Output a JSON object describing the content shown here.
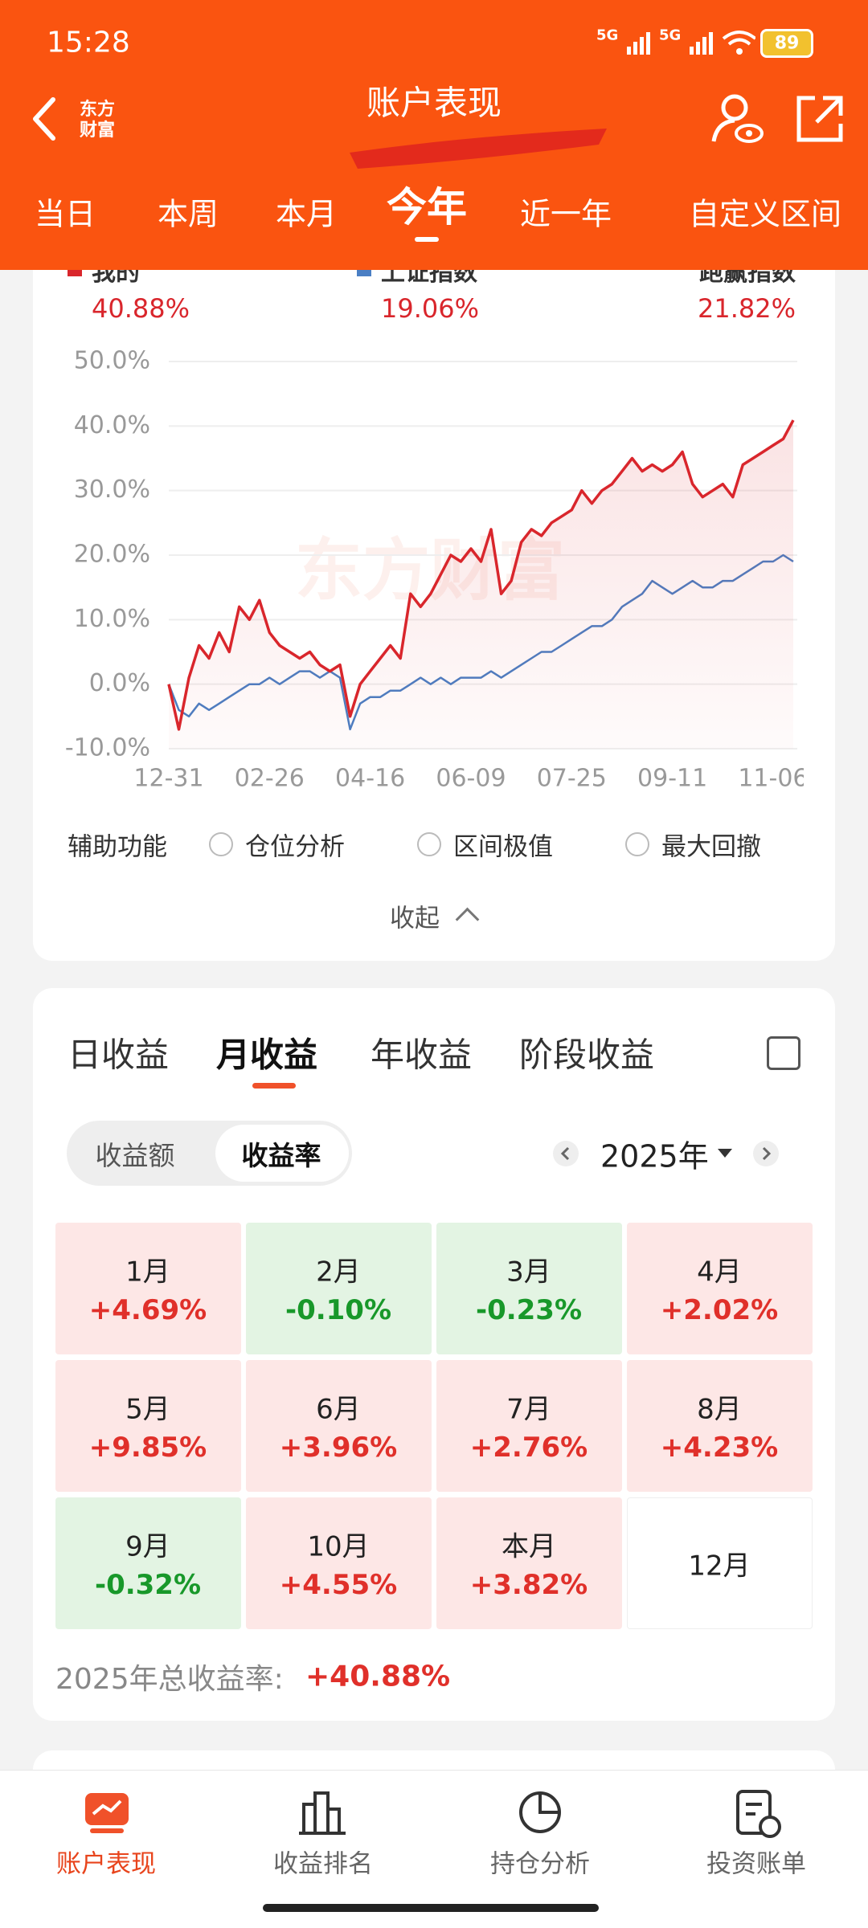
{
  "status_bar": {
    "time": "15:28",
    "network": [
      "5G",
      "5G"
    ],
    "battery": "89"
  },
  "header": {
    "logo": [
      "东方",
      "财富"
    ],
    "title": "账户表现"
  },
  "period_tabs": {
    "items": [
      "当日",
      "本周",
      "本月",
      "今年",
      "近一年",
      "自定义区间"
    ],
    "active": 3
  },
  "chart_data": {
    "type": "line",
    "watermark": "东方财富",
    "categories": [
      "12-31",
      null,
      null,
      null,
      null,
      null,
      null,
      null,
      null,
      null,
      "02-26",
      null,
      null,
      null,
      null,
      null,
      null,
      null,
      null,
      null,
      "04-16",
      null,
      null,
      null,
      null,
      null,
      null,
      null,
      null,
      null,
      "06-09",
      null,
      null,
      null,
      null,
      null,
      null,
      null,
      null,
      null,
      "07-25",
      null,
      null,
      null,
      null,
      null,
      null,
      null,
      null,
      null,
      "09-11",
      null,
      null,
      null,
      null,
      null,
      null,
      null,
      null,
      null,
      "11-06",
      null,
      null
    ],
    "series": [
      {
        "name": "我的",
        "color": "#d9262c",
        "area": true,
        "total_label": "40.88%",
        "values": [
          0,
          -7,
          1,
          6,
          4,
          8,
          5,
          12,
          10,
          13,
          8,
          6,
          5,
          4,
          5,
          3,
          2,
          3,
          -5,
          0,
          2,
          4,
          6,
          4,
          14,
          12,
          14,
          17,
          20,
          19,
          21,
          19,
          24,
          14,
          16,
          22,
          24,
          23,
          25,
          26,
          27,
          30,
          28,
          30,
          31,
          33,
          35,
          33,
          34,
          33,
          34,
          36,
          31,
          29,
          30,
          31,
          29,
          34,
          35,
          36,
          37,
          38,
          40.9
        ]
      },
      {
        "name": "上证指数",
        "color": "#4a7fc4",
        "total_label": "19.06%",
        "values": [
          0,
          -4,
          -5,
          -3,
          -4,
          -3,
          -2,
          -1,
          0,
          0,
          1,
          0,
          1,
          2,
          2,
          1,
          2,
          1,
          -7,
          -3,
          -2,
          -2,
          -1,
          -1,
          0,
          1,
          0,
          1,
          0,
          1,
          1,
          1,
          2,
          1,
          2,
          3,
          4,
          5,
          5,
          6,
          7,
          8,
          9,
          9,
          10,
          12,
          13,
          14,
          16,
          15,
          14,
          15,
          16,
          15,
          15,
          16,
          16,
          17,
          18,
          19,
          19,
          20,
          19
        ]
      }
    ],
    "excess": {
      "name": "跑赢指数",
      "value": "21.82%"
    },
    "ylim": [
      -10,
      50
    ],
    "yticks": [
      {
        "value": -10,
        "label": "-10.0%"
      },
      {
        "value": 0,
        "label": "0.0%"
      },
      {
        "value": 10,
        "label": "10.0%"
      },
      {
        "value": 20,
        "label": "20.0%"
      },
      {
        "value": 30,
        "label": "30.0%"
      },
      {
        "value": 40,
        "label": "40.0%"
      },
      {
        "value": 50,
        "label": "50.0%"
      }
    ],
    "grid": true
  },
  "aux": {
    "label": "辅助功能",
    "options": [
      "仓位分析",
      "区间极值",
      "最大回撤"
    ],
    "collapse": "收起"
  },
  "returns": {
    "tabs": [
      "日收益",
      "月收益",
      "年收益",
      "阶段收益"
    ],
    "active_tab": 1,
    "toggle": [
      "收益额",
      "收益率"
    ],
    "active_toggle": 1,
    "year": "2025年",
    "months": [
      {
        "month": "1月",
        "return": "+4.69%"
      },
      {
        "month": "2月",
        "return": "-0.10%"
      },
      {
        "month": "3月",
        "return": "-0.23%"
      },
      {
        "month": "4月",
        "return": "+2.02%"
      },
      {
        "month": "5月",
        "return": "+9.85%"
      },
      {
        "month": "6月",
        "return": "+3.96%"
      },
      {
        "month": "7月",
        "return": "+2.76%"
      },
      {
        "month": "8月",
        "return": "+4.23%"
      },
      {
        "month": "9月",
        "return": "-0.32%"
      },
      {
        "month": "10月",
        "return": "+4.55%"
      },
      {
        "month": "本月",
        "return": "+3.82%"
      },
      {
        "month": "12月"
      }
    ],
    "total_label": "2025年总收益率:",
    "total": "+40.88%"
  },
  "bottom_nav": {
    "items": [
      "账户表现",
      "收益排名",
      "持仓分析",
      "投资账单"
    ],
    "active": 0
  }
}
